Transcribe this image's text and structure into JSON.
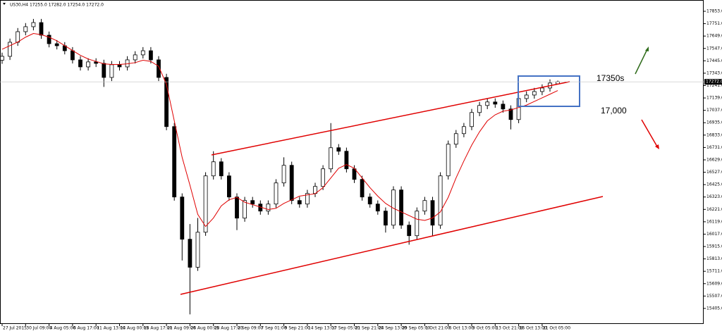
{
  "chart_data": {
    "type": "candlestick",
    "title": "US30,H4  17255.0 17282.0 17254.0 17272.0",
    "categories": [
      "27 Jul 2015",
      null,
      null,
      "30 Jul 09:00",
      null,
      null,
      "4 Aug 05:00",
      null,
      null,
      "6 Aug 17:00",
      null,
      null,
      "11 Aug 13:00",
      null,
      null,
      "14 Aug 00:05",
      null,
      null,
      "18 Aug 17:00",
      null,
      null,
      "21 Aug 09:00",
      null,
      null,
      "26 Aug 00:05",
      null,
      null,
      "28 Aug 17:00",
      null,
      null,
      "2 Sep 09:00",
      null,
      null,
      "7 Sep 01:00",
      null,
      null,
      "9 Sep 21:00",
      null,
      null,
      "14 Sep 13:00",
      null,
      null,
      "17 Sep 05:00",
      null,
      null,
      "21 Sep 21:00",
      null,
      null,
      "24 Sep 13:00",
      null,
      null,
      "29 Sep 05:00",
      null,
      null,
      "1 Oct 21:00",
      null,
      null,
      "6 Oct 13:00",
      null,
      null,
      "9 Oct 05:00",
      null,
      null,
      "13 Oct 21:00",
      null,
      null,
      "16 Oct 13:00",
      null,
      null,
      "21 Oct 05:00",
      null,
      null
    ],
    "open": [
      17450,
      17482,
      17598,
      17685,
      17726,
      17760,
      17656,
      17586,
      17569,
      17528,
      17453,
      17395,
      17436,
      17424,
      17308,
      17413,
      17395,
      17453,
      17494,
      17528,
      17453,
      17308,
      16903,
      16323,
      15975,
      15744,
      16033,
      16497,
      16613,
      16497,
      16323,
      16149,
      16294,
      16265,
      16207,
      16265,
      16439,
      16584,
      16294,
      16265,
      16352,
      16410,
      16555,
      16729,
      16700,
      16555,
      16468,
      16323,
      16265,
      16207,
      16091,
      16381,
      16091,
      16004,
      16207,
      16294,
      16091,
      16497,
      16758,
      16845,
      16903,
      17019,
      17077,
      17106,
      17088,
      17048,
      16961,
      17134,
      17163,
      17192,
      17221,
      17255
    ],
    "high": [
      17512,
      17628,
      17715,
      17756,
      17790,
      17790,
      17686,
      17616,
      17599,
      17558,
      17483,
      17466,
      17466,
      17454,
      17443,
      17443,
      17483,
      17524,
      17558,
      17558,
      17483,
      17338,
      16933,
      16353,
      16100,
      16150,
      16527,
      16700,
      16643,
      16527,
      16353,
      16324,
      16324,
      16295,
      16295,
      16469,
      16650,
      16614,
      16324,
      16382,
      16440,
      16585,
      16932,
      16759,
      16730,
      16585,
      16498,
      16353,
      16295,
      16237,
      16411,
      16411,
      16121,
      16237,
      16324,
      16324,
      16527,
      16788,
      16875,
      16933,
      17049,
      17107,
      17136,
      17136,
      17118,
      17078,
      17164,
      17193,
      17222,
      17251,
      17292,
      17282
    ],
    "low": [
      17420,
      17452,
      17568,
      17655,
      17696,
      17626,
      17556,
      17539,
      17498,
      17423,
      17365,
      17365,
      17394,
      17230,
      17278,
      17365,
      17365,
      17423,
      17464,
      17423,
      17278,
      16873,
      16293,
      15800,
      15356,
      15714,
      16003,
      16467,
      16467,
      16293,
      16050,
      16119,
      16235,
      16177,
      16177,
      16235,
      16409,
      16264,
      16235,
      16235,
      16322,
      16380,
      16525,
      16670,
      16525,
      16438,
      16293,
      16235,
      16177,
      16030,
      16061,
      16061,
      15930,
      15974,
      16177,
      16000,
      16061,
      16467,
      16728,
      16815,
      16873,
      16989,
      17047,
      17058,
      17018,
      16880,
      16931,
      17104,
      17133,
      17162,
      17191,
      17254
    ],
    "close": [
      17482,
      17598,
      17685,
      17726,
      17760,
      17656,
      17586,
      17569,
      17528,
      17453,
      17395,
      17436,
      17424,
      17308,
      17413,
      17395,
      17453,
      17494,
      17528,
      17453,
      17308,
      16903,
      16323,
      15975,
      15744,
      16033,
      16497,
      16613,
      16497,
      16323,
      16149,
      16294,
      16265,
      16207,
      16265,
      16439,
      16584,
      16294,
      16265,
      16352,
      16410,
      16555,
      16729,
      16700,
      16555,
      16468,
      16323,
      16265,
      16207,
      16091,
      16381,
      16091,
      16004,
      16207,
      16294,
      16091,
      16497,
      16758,
      16845,
      16903,
      17019,
      17077,
      17106,
      17088,
      17048,
      16961,
      17134,
      17163,
      17192,
      17221,
      17262,
      17272
    ],
    "ma": {
      "color": "#e00000",
      "values": [
        17540,
        17570,
        17600,
        17640,
        17670,
        17660,
        17640,
        17610,
        17570,
        17530,
        17490,
        17460,
        17440,
        17420,
        17415,
        17415,
        17420,
        17430,
        17450,
        17440,
        17400,
        17250,
        16950,
        16650,
        16420,
        16180,
        16080,
        16150,
        16250,
        16300,
        16320,
        16280,
        16260,
        16240,
        16220,
        16230,
        16270,
        16300,
        16330,
        16340,
        16350,
        16400,
        16480,
        16560,
        16590,
        16560,
        16480,
        16400,
        16330,
        16270,
        16230,
        16200,
        16170,
        16140,
        16130,
        16150,
        16200,
        16320,
        16480,
        16620,
        16750,
        16860,
        16950,
        17000,
        17030,
        17040,
        17060,
        17080,
        17110,
        17140,
        17170,
        17200
      ]
    },
    "ylim": [
      15277,
      17946
    ],
    "yticks": [
      {
        "value": 15405,
        "label": "15405.0"
      },
      {
        "value": 15507,
        "label": "15507.0"
      },
      {
        "value": 15609,
        "label": "15609.0"
      },
      {
        "value": 15711,
        "label": "15711.0"
      },
      {
        "value": 15813,
        "label": "15813.0"
      },
      {
        "value": 15915,
        "label": "15915.0"
      },
      {
        "value": 16017,
        "label": "16017.0"
      },
      {
        "value": 16119,
        "label": "16119.0"
      },
      {
        "value": 16221,
        "label": "16221.0"
      },
      {
        "value": 16323,
        "label": "16323.0"
      },
      {
        "value": 16425,
        "label": "16425.0"
      },
      {
        "value": 16527,
        "label": "16527.0"
      },
      {
        "value": 16629,
        "label": "16629.0"
      },
      {
        "value": 16731,
        "label": "16731.0"
      },
      {
        "value": 16833,
        "label": "16833.0"
      },
      {
        "value": 16935,
        "label": "16935.0"
      },
      {
        "value": 17037,
        "label": "17037.0"
      },
      {
        "value": 17139,
        "label": "17139.0"
      },
      {
        "value": 17241,
        "label": "17241.0"
      },
      {
        "value": 17343,
        "label": "17343.0"
      },
      {
        "value": 17445,
        "label": "17445.0"
      },
      {
        "value": 17547,
        "label": "17547.0"
      },
      {
        "value": 17649,
        "label": "17649.0"
      },
      {
        "value": 17751,
        "label": "17751.0"
      },
      {
        "value": 17853,
        "label": "17853.0"
      }
    ],
    "current_price": {
      "value": 17272,
      "label": "17272.0"
    },
    "annotations": [
      "17350s",
      "17,000"
    ]
  }
}
